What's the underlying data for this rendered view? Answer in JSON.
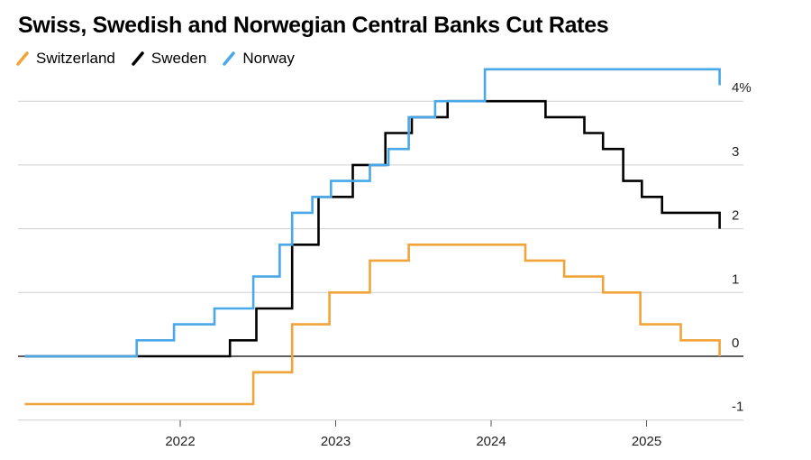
{
  "chart_data": {
    "type": "line",
    "step": true,
    "title": "Swiss, Swedish and Norwegian Central Banks Cut Rates",
    "xlabel": "",
    "ylabel": "",
    "x_range": [
      2021.0,
      2025.55
    ],
    "ylim": [
      -1,
      4.5
    ],
    "y_ticks": [
      {
        "value": 4,
        "label": "4%"
      },
      {
        "value": 3,
        "label": "3"
      },
      {
        "value": 2,
        "label": "2"
      },
      {
        "value": 1,
        "label": "1"
      },
      {
        "value": 0,
        "label": "0"
      },
      {
        "value": -1,
        "label": "-1"
      }
    ],
    "x_ticks": [
      {
        "value": 2022,
        "label": "2022"
      },
      {
        "value": 2023,
        "label": "2023"
      },
      {
        "value": 2024,
        "label": "2024"
      },
      {
        "value": 2025,
        "label": "2025"
      }
    ],
    "grid": true,
    "legend_position": "top-left",
    "series": [
      {
        "name": "Switzerland",
        "color": "#f0a43a",
        "points": [
          [
            2021.0,
            -0.75
          ],
          [
            2022.47,
            -0.25
          ],
          [
            2022.72,
            0.5
          ],
          [
            2022.96,
            1.0
          ],
          [
            2023.22,
            1.5
          ],
          [
            2023.47,
            1.75
          ],
          [
            2024.22,
            1.5
          ],
          [
            2024.47,
            1.25
          ],
          [
            2024.72,
            1.0
          ],
          [
            2024.96,
            0.5
          ],
          [
            2025.22,
            0.25
          ],
          [
            2025.47,
            0.0
          ]
        ]
      },
      {
        "name": "Sweden",
        "color": "#000000",
        "points": [
          [
            2021.0,
            0.0
          ],
          [
            2022.32,
            0.25
          ],
          [
            2022.49,
            0.75
          ],
          [
            2022.72,
            1.75
          ],
          [
            2022.89,
            2.5
          ],
          [
            2023.11,
            3.0
          ],
          [
            2023.32,
            3.5
          ],
          [
            2023.49,
            3.75
          ],
          [
            2023.72,
            4.0
          ],
          [
            2024.35,
            3.75
          ],
          [
            2024.6,
            3.5
          ],
          [
            2024.72,
            3.25
          ],
          [
            2024.85,
            2.75
          ],
          [
            2024.97,
            2.5
          ],
          [
            2025.1,
            2.25
          ],
          [
            2025.47,
            2.0
          ]
        ]
      },
      {
        "name": "Norway",
        "color": "#4aa8e8",
        "points": [
          [
            2021.0,
            0.0
          ],
          [
            2021.72,
            0.25
          ],
          [
            2021.96,
            0.5
          ],
          [
            2022.22,
            0.75
          ],
          [
            2022.47,
            1.25
          ],
          [
            2022.64,
            1.75
          ],
          [
            2022.72,
            2.25
          ],
          [
            2022.85,
            2.5
          ],
          [
            2022.97,
            2.75
          ],
          [
            2023.22,
            3.0
          ],
          [
            2023.34,
            3.25
          ],
          [
            2023.47,
            3.75
          ],
          [
            2023.64,
            4.0
          ],
          [
            2023.96,
            4.5
          ],
          [
            2025.47,
            4.25
          ]
        ]
      }
    ]
  }
}
